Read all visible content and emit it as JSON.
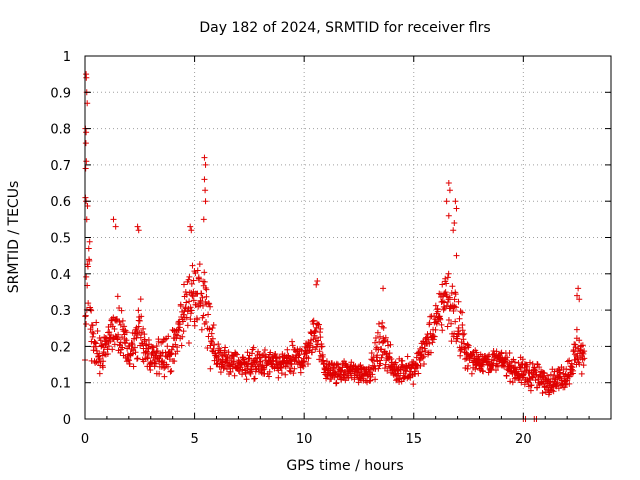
{
  "chart_data": {
    "type": "scatter",
    "title": "Day 182 of 2024, SRMTID for receiver flrs",
    "xlabel": "GPS time / hours",
    "ylabel": "SRMTID / TECUs",
    "xlim": [
      0,
      24
    ],
    "ylim": [
      0,
      1
    ],
    "xticks": [
      0,
      5,
      10,
      15,
      20
    ],
    "yticks": [
      0,
      0.1,
      0.2,
      0.3,
      0.4,
      0.5,
      0.6,
      0.7,
      0.8,
      0.9,
      1
    ],
    "grid": true,
    "marker": "plus",
    "color": "#e00000",
    "envelope": [
      {
        "t": 0.0,
        "center": 0.22,
        "spread": 0.12
      },
      {
        "t": 0.1,
        "center": 0.45,
        "spread": 0.35
      },
      {
        "t": 0.3,
        "center": 0.22,
        "spread": 0.14
      },
      {
        "t": 0.8,
        "center": 0.17,
        "spread": 0.09
      },
      {
        "t": 1.2,
        "center": 0.22,
        "spread": 0.12
      },
      {
        "t": 1.5,
        "center": 0.26,
        "spread": 0.13
      },
      {
        "t": 2.0,
        "center": 0.17,
        "spread": 0.09
      },
      {
        "t": 2.5,
        "center": 0.25,
        "spread": 0.12
      },
      {
        "t": 3.0,
        "center": 0.15,
        "spread": 0.08
      },
      {
        "t": 3.5,
        "center": 0.18,
        "spread": 0.1
      },
      {
        "t": 4.0,
        "center": 0.18,
        "spread": 0.1
      },
      {
        "t": 4.5,
        "center": 0.3,
        "spread": 0.12
      },
      {
        "t": 5.0,
        "center": 0.35,
        "spread": 0.15
      },
      {
        "t": 5.5,
        "center": 0.3,
        "spread": 0.2
      },
      {
        "t": 6.0,
        "center": 0.17,
        "spread": 0.07
      },
      {
        "t": 7.0,
        "center": 0.15,
        "spread": 0.06
      },
      {
        "t": 8.0,
        "center": 0.15,
        "spread": 0.07
      },
      {
        "t": 9.0,
        "center": 0.15,
        "spread": 0.06
      },
      {
        "t": 10.0,
        "center": 0.17,
        "spread": 0.07
      },
      {
        "t": 10.6,
        "center": 0.25,
        "spread": 0.1
      },
      {
        "t": 11.0,
        "center": 0.13,
        "spread": 0.05
      },
      {
        "t": 12.0,
        "center": 0.13,
        "spread": 0.05
      },
      {
        "t": 13.0,
        "center": 0.13,
        "spread": 0.05
      },
      {
        "t": 13.6,
        "center": 0.22,
        "spread": 0.12
      },
      {
        "t": 14.0,
        "center": 0.14,
        "spread": 0.06
      },
      {
        "t": 15.0,
        "center": 0.13,
        "spread": 0.06
      },
      {
        "t": 15.5,
        "center": 0.2,
        "spread": 0.07
      },
      {
        "t": 16.0,
        "center": 0.26,
        "spread": 0.1
      },
      {
        "t": 16.5,
        "center": 0.35,
        "spread": 0.15
      },
      {
        "t": 17.0,
        "center": 0.25,
        "spread": 0.15
      },
      {
        "t": 17.5,
        "center": 0.17,
        "spread": 0.06
      },
      {
        "t": 18.0,
        "center": 0.16,
        "spread": 0.05
      },
      {
        "t": 19.0,
        "center": 0.16,
        "spread": 0.05
      },
      {
        "t": 19.8,
        "center": 0.13,
        "spread": 0.06
      },
      {
        "t": 20.5,
        "center": 0.12,
        "spread": 0.07
      },
      {
        "t": 21.0,
        "center": 0.1,
        "spread": 0.05
      },
      {
        "t": 22.0,
        "center": 0.12,
        "spread": 0.06
      },
      {
        "t": 22.5,
        "center": 0.2,
        "spread": 0.1
      },
      {
        "t": 22.8,
        "center": 0.15,
        "spread": 0.07
      }
    ],
    "spikes": [
      {
        "x": 0.05,
        "y": 0.95
      },
      {
        "x": 0.06,
        "y": 0.94
      },
      {
        "x": 0.08,
        "y": 0.9
      },
      {
        "x": 0.1,
        "y": 0.87
      },
      {
        "x": 0.02,
        "y": 0.8
      },
      {
        "x": 0.05,
        "y": 0.79
      },
      {
        "x": 0.04,
        "y": 0.76
      },
      {
        "x": 0.06,
        "y": 0.71
      },
      {
        "x": 0.03,
        "y": 0.69
      },
      {
        "x": 0.02,
        "y": 0.61
      },
      {
        "x": 0.05,
        "y": 0.6
      },
      {
        "x": 0.08,
        "y": 0.55
      },
      {
        "x": 1.3,
        "y": 0.55
      },
      {
        "x": 1.4,
        "y": 0.53
      },
      {
        "x": 2.4,
        "y": 0.53
      },
      {
        "x": 2.45,
        "y": 0.52
      },
      {
        "x": 4.8,
        "y": 0.53
      },
      {
        "x": 4.85,
        "y": 0.52
      },
      {
        "x": 5.45,
        "y": 0.72
      },
      {
        "x": 5.5,
        "y": 0.7
      },
      {
        "x": 5.45,
        "y": 0.66
      },
      {
        "x": 5.48,
        "y": 0.63
      },
      {
        "x": 5.5,
        "y": 0.6
      },
      {
        "x": 5.42,
        "y": 0.55
      },
      {
        "x": 10.6,
        "y": 0.38
      },
      {
        "x": 10.55,
        "y": 0.37
      },
      {
        "x": 13.6,
        "y": 0.36
      },
      {
        "x": 16.6,
        "y": 0.65
      },
      {
        "x": 16.65,
        "y": 0.63
      },
      {
        "x": 16.5,
        "y": 0.6
      },
      {
        "x": 16.9,
        "y": 0.6
      },
      {
        "x": 16.95,
        "y": 0.58
      },
      {
        "x": 16.6,
        "y": 0.56
      },
      {
        "x": 16.85,
        "y": 0.54
      },
      {
        "x": 16.8,
        "y": 0.52
      },
      {
        "x": 16.95,
        "y": 0.45
      },
      {
        "x": 22.5,
        "y": 0.36
      },
      {
        "x": 22.45,
        "y": 0.34
      },
      {
        "x": 22.55,
        "y": 0.33
      }
    ],
    "baseline_points": [
      {
        "x": 20.0,
        "y": 0.0
      },
      {
        "x": 20.1,
        "y": 0.0
      },
      {
        "x": 20.5,
        "y": 0.0
      },
      {
        "x": 20.6,
        "y": 0.0
      }
    ]
  }
}
